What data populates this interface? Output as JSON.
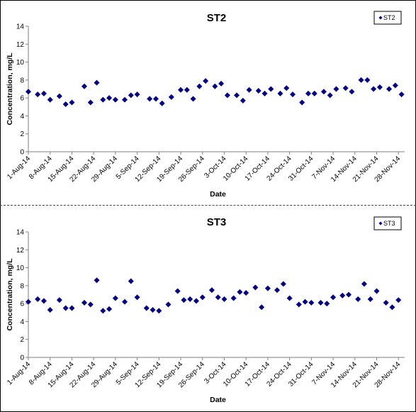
{
  "chart_data": [
    {
      "type": "scatter",
      "title": "ST2",
      "xlabel": "Date",
      "ylabel": "Concentration, mg/L",
      "ylim": [
        0,
        14
      ],
      "yticks": [
        "0",
        "2",
        "4",
        "6",
        "8",
        "10",
        "12",
        "14"
      ],
      "xlim": [
        "2014-08-01",
        "2014-11-30"
      ],
      "xticks": [
        "1-Aug-14",
        "8-Aug-14",
        "15-Aug-14",
        "22-Aug-14",
        "29-Aug-14",
        "5-Sep-14",
        "12-Sep-14",
        "19-Sep-14",
        "26-Sep-14",
        "3-Oct-14",
        "10-Oct-14",
        "17-Oct-14",
        "24-Oct-14",
        "31-Oct-14",
        "7-Nov-14",
        "14-Nov-14",
        "21-Nov-14",
        "28-Nov-14"
      ],
      "legend": "top-right",
      "grid": false,
      "series": [
        {
          "name": "ST2",
          "color": "#000080",
          "points": [
            [
              "2014-08-01",
              6.7
            ],
            [
              "2014-08-04",
              6.4
            ],
            [
              "2014-08-06",
              6.5
            ],
            [
              "2014-08-08",
              5.8
            ],
            [
              "2014-08-11",
              6.2
            ],
            [
              "2014-08-13",
              5.3
            ],
            [
              "2014-08-15",
              5.5
            ],
            [
              "2014-08-19",
              7.3
            ],
            [
              "2014-08-21",
              5.5
            ],
            [
              "2014-08-23",
              7.7
            ],
            [
              "2014-08-25",
              5.8
            ],
            [
              "2014-08-27",
              6.0
            ],
            [
              "2014-08-29",
              5.8
            ],
            [
              "2014-09-01",
              5.8
            ],
            [
              "2014-09-03",
              6.3
            ],
            [
              "2014-09-05",
              6.4
            ],
            [
              "2014-09-09",
              5.9
            ],
            [
              "2014-09-11",
              5.9
            ],
            [
              "2014-09-13",
              5.4
            ],
            [
              "2014-09-16",
              6.1
            ],
            [
              "2014-09-19",
              6.9
            ],
            [
              "2014-09-21",
              6.9
            ],
            [
              "2014-09-23",
              5.9
            ],
            [
              "2014-09-25",
              7.3
            ],
            [
              "2014-09-27",
              7.9
            ],
            [
              "2014-09-30",
              7.3
            ],
            [
              "2014-10-02",
              7.6
            ],
            [
              "2014-10-04",
              6.3
            ],
            [
              "2014-10-07",
              6.3
            ],
            [
              "2014-10-09",
              5.7
            ],
            [
              "2014-10-11",
              6.9
            ],
            [
              "2014-10-14",
              6.8
            ],
            [
              "2014-10-16",
              6.5
            ],
            [
              "2014-10-18",
              7.0
            ],
            [
              "2014-10-21",
              6.5
            ],
            [
              "2014-10-23",
              7.1
            ],
            [
              "2014-10-25",
              6.4
            ],
            [
              "2014-10-28",
              5.5
            ],
            [
              "2014-10-30",
              6.5
            ],
            [
              "2014-11-01",
              6.5
            ],
            [
              "2014-11-04",
              6.7
            ],
            [
              "2014-11-06",
              6.3
            ],
            [
              "2014-11-08",
              7.0
            ],
            [
              "2014-11-11",
              7.1
            ],
            [
              "2014-11-13",
              6.7
            ],
            [
              "2014-11-16",
              8.0
            ],
            [
              "2014-11-18",
              8.0
            ],
            [
              "2014-11-20",
              7.0
            ],
            [
              "2014-11-22",
              7.2
            ],
            [
              "2014-11-25",
              7.0
            ],
            [
              "2014-11-27",
              7.4
            ],
            [
              "2014-11-29",
              6.4
            ]
          ]
        }
      ]
    },
    {
      "type": "scatter",
      "title": "ST3",
      "xlabel": "Date",
      "ylabel": "Concentration, mg/L",
      "ylim": [
        0,
        14
      ],
      "yticks": [
        "0",
        "2",
        "4",
        "6",
        "8",
        "10",
        "12",
        "14"
      ],
      "xlim": [
        "2014-08-01",
        "2014-11-30"
      ],
      "xticks": [
        "1-Aug-14",
        "8-Aug-14",
        "15-Aug-14",
        "22-Aug-14",
        "29-Aug-14",
        "5-Sep-14",
        "12-Sep-14",
        "19-Sep-14",
        "26-Sep-14",
        "3-Oct-14",
        "10-Oct-14",
        "17-Oct-14",
        "24-Oct-14",
        "31-Oct-14",
        "7-Nov-14",
        "14-Nov-14",
        "21-Nov-14",
        "28-Nov-14"
      ],
      "legend": "top-right",
      "grid": false,
      "series": [
        {
          "name": "ST3",
          "color": "#000080",
          "points": [
            [
              "2014-08-01",
              6.2
            ],
            [
              "2014-08-04",
              6.5
            ],
            [
              "2014-08-06",
              6.3
            ],
            [
              "2014-08-08",
              5.3
            ],
            [
              "2014-08-11",
              6.4
            ],
            [
              "2014-08-13",
              5.5
            ],
            [
              "2014-08-15",
              5.5
            ],
            [
              "2014-08-19",
              6.1
            ],
            [
              "2014-08-21",
              5.9
            ],
            [
              "2014-08-23",
              8.6
            ],
            [
              "2014-08-25",
              5.2
            ],
            [
              "2014-08-27",
              5.4
            ],
            [
              "2014-08-29",
              6.6
            ],
            [
              "2014-09-01",
              6.2
            ],
            [
              "2014-09-03",
              8.5
            ],
            [
              "2014-09-05",
              6.7
            ],
            [
              "2014-09-08",
              5.5
            ],
            [
              "2014-09-10",
              5.3
            ],
            [
              "2014-09-12",
              5.2
            ],
            [
              "2014-09-15",
              5.9
            ],
            [
              "2014-09-18",
              7.4
            ],
            [
              "2014-09-20",
              6.4
            ],
            [
              "2014-09-22",
              6.5
            ],
            [
              "2014-09-24",
              6.3
            ],
            [
              "2014-09-26",
              6.7
            ],
            [
              "2014-09-29",
              7.5
            ],
            [
              "2014-10-01",
              6.7
            ],
            [
              "2014-10-03",
              6.5
            ],
            [
              "2014-10-06",
              6.6
            ],
            [
              "2014-10-08",
              7.3
            ],
            [
              "2014-10-10",
              7.2
            ],
            [
              "2014-10-13",
              7.8
            ],
            [
              "2014-10-15",
              5.6
            ],
            [
              "2014-10-17",
              7.7
            ],
            [
              "2014-10-20",
              7.5
            ],
            [
              "2014-10-22",
              8.2
            ],
            [
              "2014-10-24",
              6.6
            ],
            [
              "2014-10-27",
              5.9
            ],
            [
              "2014-10-29",
              6.2
            ],
            [
              "2014-10-31",
              6.1
            ],
            [
              "2014-11-03",
              6.1
            ],
            [
              "2014-11-05",
              6.0
            ],
            [
              "2014-11-07",
              6.7
            ],
            [
              "2014-11-10",
              6.9
            ],
            [
              "2014-11-12",
              7.0
            ],
            [
              "2014-11-15",
              6.5
            ],
            [
              "2014-11-17",
              8.2
            ],
            [
              "2014-11-19",
              6.5
            ],
            [
              "2014-11-21",
              7.4
            ],
            [
              "2014-11-24",
              6.1
            ],
            [
              "2014-11-26",
              5.6
            ],
            [
              "2014-11-28",
              6.4
            ]
          ]
        }
      ]
    }
  ]
}
